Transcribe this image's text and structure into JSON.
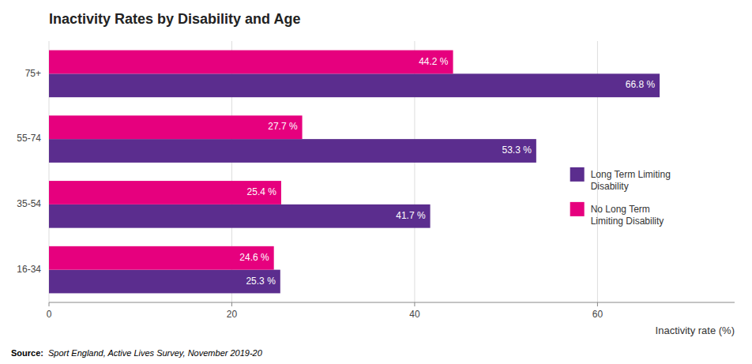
{
  "chart_data": {
    "type": "bar",
    "orientation": "horizontal",
    "title": "Inactivity Rates by Disability and Age",
    "categories": [
      "16-34",
      "35-54",
      "55-74",
      "75+"
    ],
    "series": [
      {
        "name": "Long Term Limiting\nDisability",
        "color": "#5b2d8e",
        "values": [
          25.3,
          41.7,
          53.3,
          66.8
        ],
        "value_labels": [
          "25.3 %",
          "41.7 %",
          "53.3 %",
          "66.8 %"
        ]
      },
      {
        "name": "No Long Term\nLimiting Disability",
        "color": "#e6007e",
        "values": [
          24.6,
          25.4,
          27.7,
          44.2
        ],
        "value_labels": [
          "24.6 %",
          "25.4 %",
          "27.7 %",
          "44.2 %"
        ]
      }
    ],
    "x_label": "Inactivity rate (%)",
    "xlim": [
      0,
      75
    ],
    "xticks": [
      0,
      20,
      40,
      60
    ],
    "grid": true,
    "legend": "right",
    "data_labels": true,
    "annotations": [
      "Source:",
      "Sport England, Active Lives Survey, November 2019-20"
    ]
  }
}
